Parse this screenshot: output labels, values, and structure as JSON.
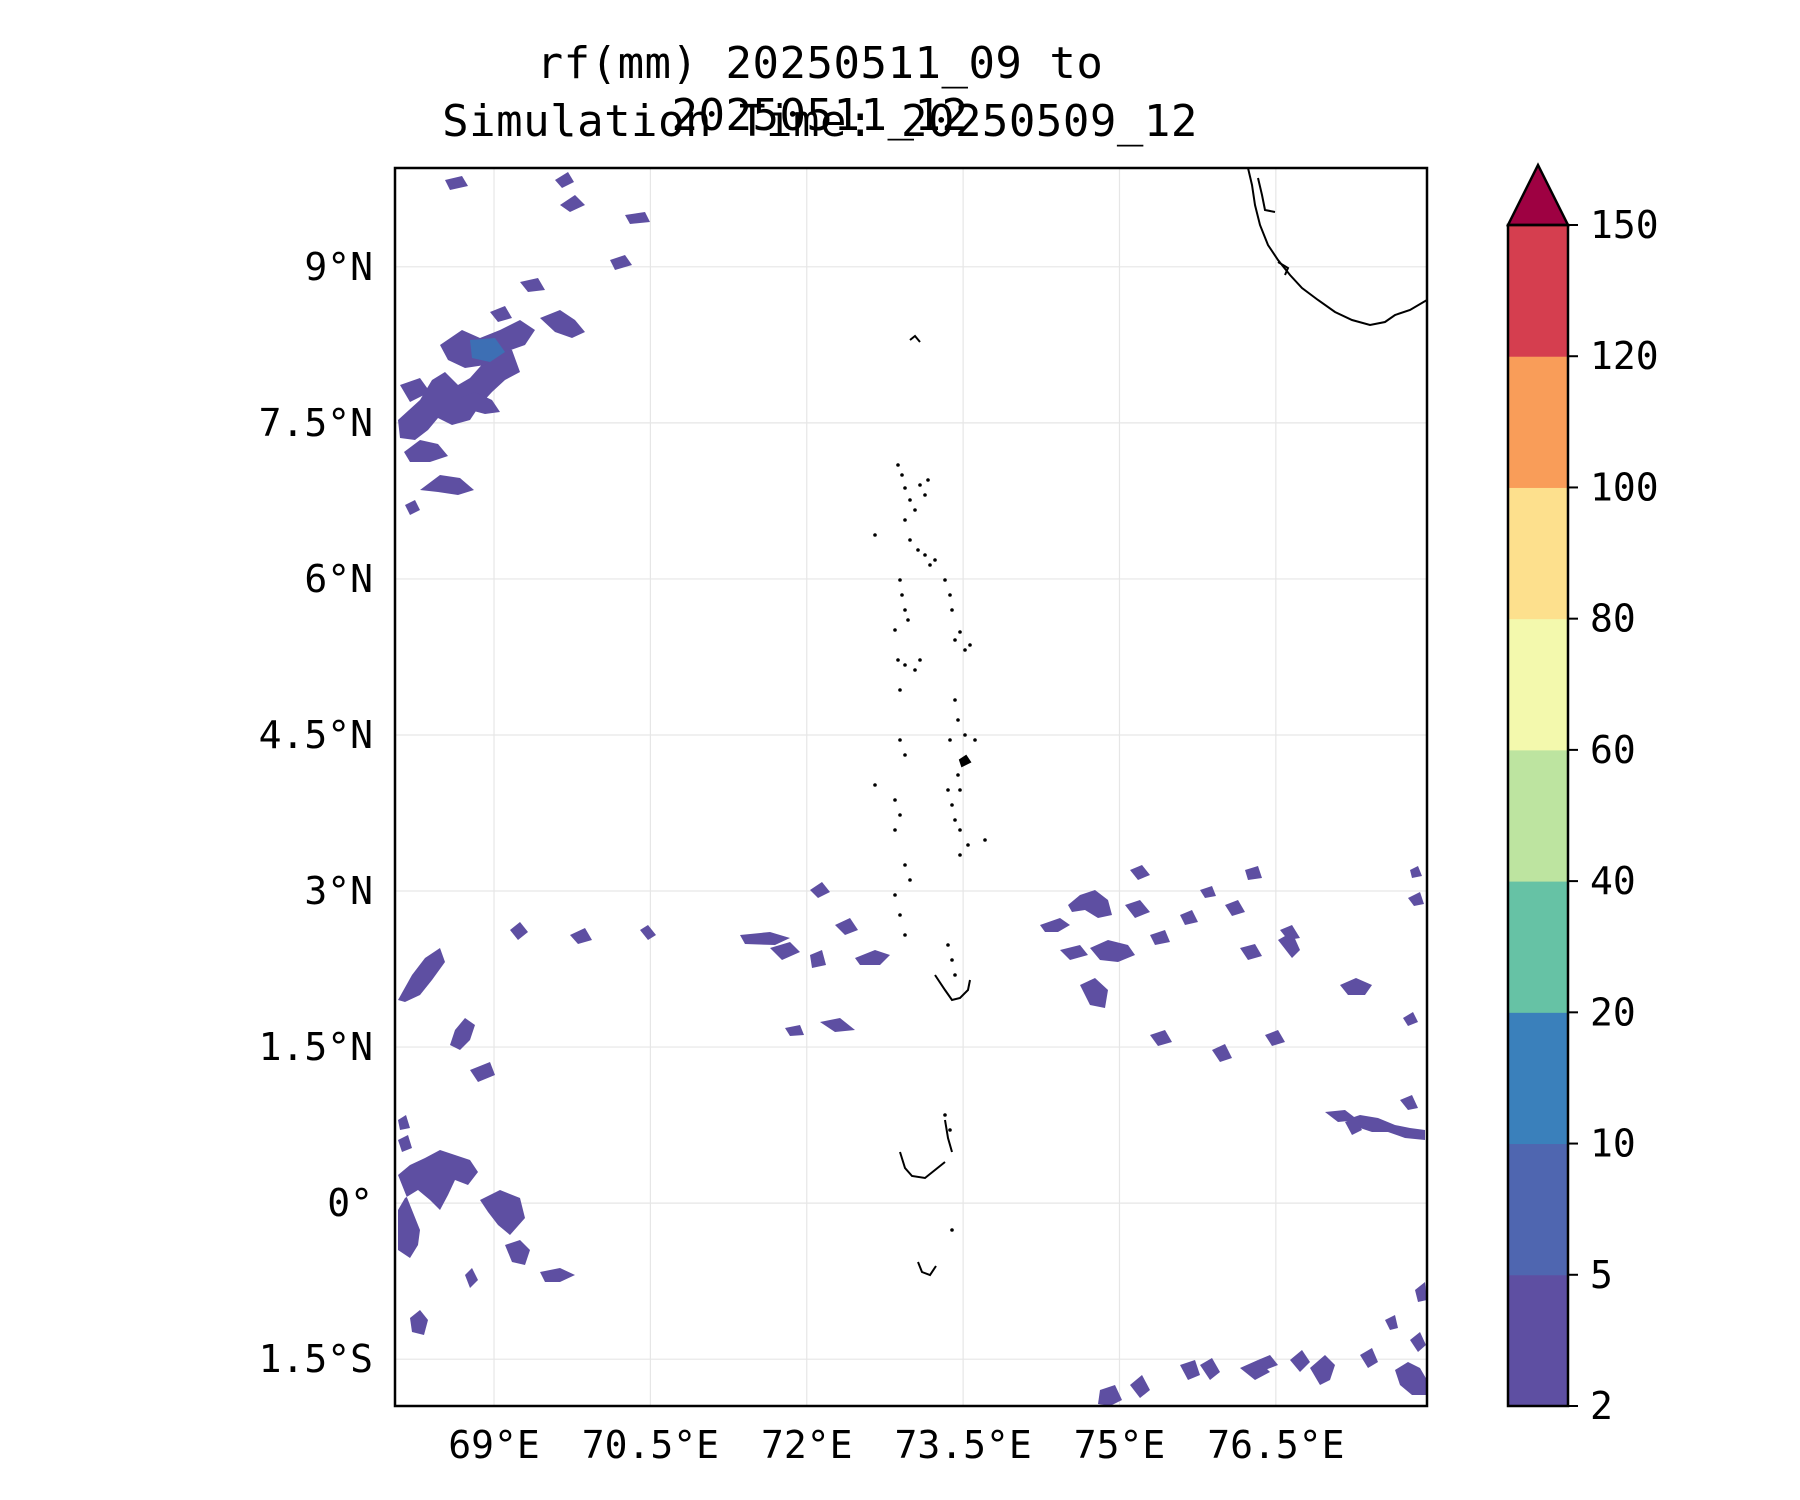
{
  "title": {
    "line1": "rf(mm) 20250511_09 to 20250511_12",
    "line2": "Simulation Time: 20250509_12"
  },
  "map": {
    "lon_range": [
      68.05,
      77.95
    ],
    "lat_range": [
      -1.95,
      9.95
    ],
    "lon_ticks": [
      {
        "value": 69,
        "label": "69°E"
      },
      {
        "value": 70.5,
        "label": "70.5°E"
      },
      {
        "value": 72,
        "label": "72°E"
      },
      {
        "value": 73.5,
        "label": "73.5°E"
      },
      {
        "value": 75,
        "label": "75°E"
      },
      {
        "value": 76.5,
        "label": "76.5°E"
      }
    ],
    "lat_ticks": [
      {
        "value": 9,
        "label": "9°N"
      },
      {
        "value": 7.5,
        "label": "7.5°N"
      },
      {
        "value": 6,
        "label": "6°N"
      },
      {
        "value": 4.5,
        "label": "4.5°N"
      },
      {
        "value": 3,
        "label": "3°N"
      },
      {
        "value": 1.5,
        "label": "1.5°N"
      },
      {
        "value": 0,
        "label": "0°"
      },
      {
        "value": -1.5,
        "label": "1.5°S"
      }
    ],
    "gridlines": true,
    "rain_color": "#5e4fa2",
    "rain_color_heavier": "#3288bd"
  },
  "colorbar": {
    "extend": "max",
    "ticks": [
      "2",
      "5",
      "10",
      "20",
      "40",
      "60",
      "80",
      "100",
      "120",
      "150"
    ],
    "colors": [
      "#5e4fa2",
      "#4f66b0",
      "#3a80bb",
      "#66c2a5",
      "#bde4a0",
      "#f3f9ad",
      "#fde08d",
      "#f99d59",
      "#d53e4f"
    ],
    "extend_color": "#9e0142"
  }
}
